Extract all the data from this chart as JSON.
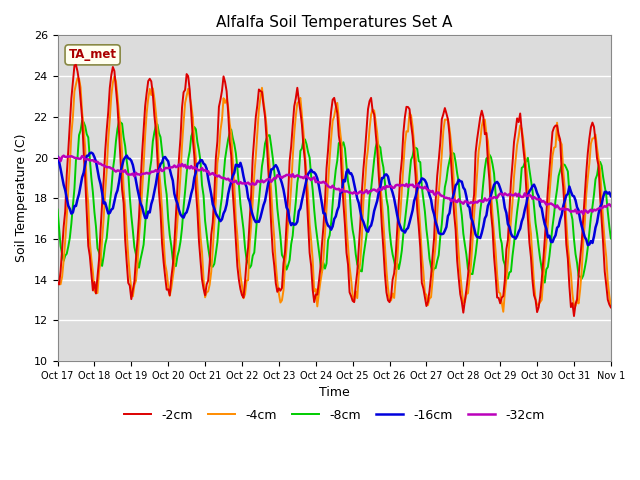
{
  "title": "Alfalfa Soil Temperatures Set A",
  "xlabel": "Time",
  "ylabel": "Soil Temperature (C)",
  "ylim": [
    10,
    26
  ],
  "yticks": [
    10,
    12,
    14,
    16,
    18,
    20,
    22,
    24,
    26
  ],
  "xtick_labels": [
    "Oct 17",
    "Oct 18",
    "Oct 19",
    "Oct 20",
    "Oct 21",
    "Oct 22",
    "Oct 23",
    "Oct 24",
    "Oct 25",
    "Oct 26",
    "Oct 27",
    "Oct 28",
    "Oct 29",
    "Oct 30",
    "Oct 31",
    "Nov 1"
  ],
  "annotation_text": "TA_met",
  "bg_color": "#dcdcdc",
  "line_colors": {
    "-2cm": "#dd0000",
    "-4cm": "#ff8c00",
    "-8cm": "#00cc00",
    "-16cm": "#0000dd",
    "-32cm": "#bb00bb"
  },
  "line_widths": {
    "-2cm": 1.4,
    "-4cm": 1.4,
    "-8cm": 1.4,
    "-16cm": 1.8,
    "-32cm": 1.8
  }
}
